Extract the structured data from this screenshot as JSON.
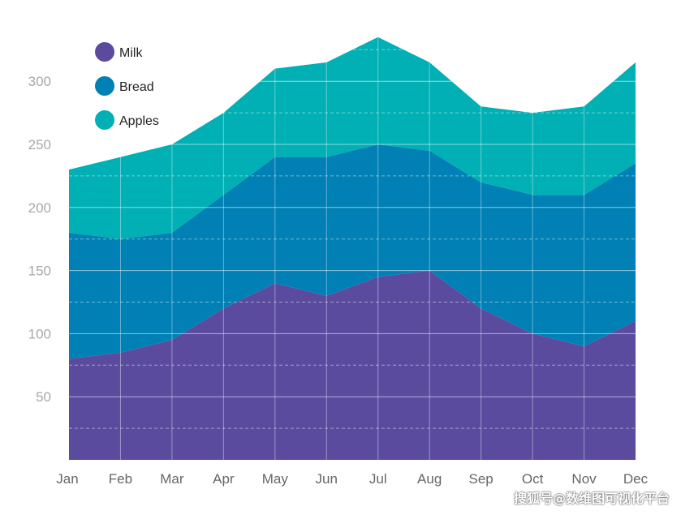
{
  "chart_data": {
    "type": "area",
    "stacked": true,
    "categories": [
      "Jan",
      "Feb",
      "Mar",
      "Apr",
      "May",
      "Jun",
      "Jul",
      "Aug",
      "Sep",
      "Oct",
      "Nov",
      "Dec"
    ],
    "series": [
      {
        "name": "Milk",
        "color": "#5b4b9f",
        "values": [
          80,
          85,
          95,
          120,
          140,
          130,
          145,
          150,
          120,
          100,
          90,
          110
        ]
      },
      {
        "name": "Bread",
        "color": "#0080b4",
        "values": [
          100,
          90,
          85,
          90,
          100,
          110,
          105,
          95,
          100,
          110,
          120,
          125
        ]
      },
      {
        "name": "Apples",
        "color": "#00b0b4",
        "values": [
          50,
          65,
          70,
          65,
          70,
          75,
          85,
          70,
          60,
          65,
          70,
          80
        ]
      }
    ],
    "yticks": [
      50,
      100,
      150,
      200,
      250,
      300
    ],
    "ylim": [
      0,
      340
    ],
    "grid": true,
    "legend_position": "top-left"
  },
  "watermark": "搜狐号@数维图可视化平台"
}
